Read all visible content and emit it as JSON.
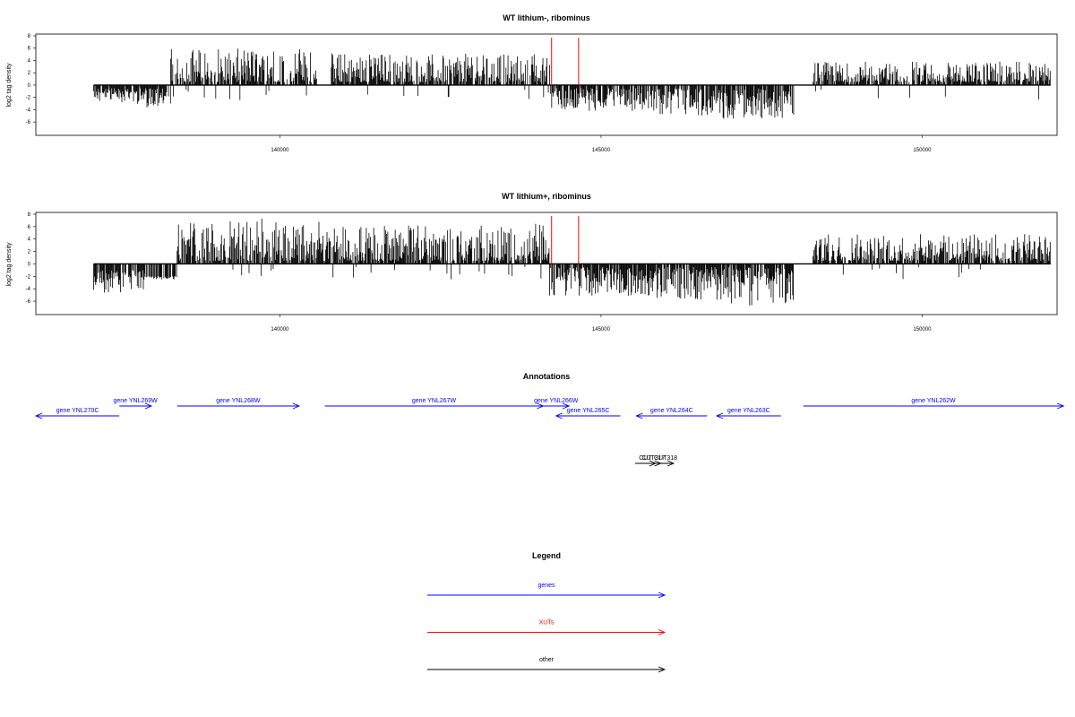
{
  "chart_data": [
    {
      "type": "bar",
      "title": "WT lithium-, ribominus",
      "ylabel": "log2 tag density",
      "xlim": [
        136200,
        152100
      ],
      "ylim": [
        -7,
        8
      ],
      "x_ticks": [
        "140000",
        "145000",
        "150000"
      ],
      "y_ticks": [
        "8",
        "6",
        "4",
        "2",
        "0",
        "-2",
        "-4",
        "-6"
      ],
      "marker_lines_x": [
        144230,
        144650
      ],
      "marker_line_color": "#ff0000",
      "bar_color": "#000000",
      "profile_segments": [
        {
          "x0": 137100,
          "x1": 137700,
          "min": -2.8,
          "max": -0.5
        },
        {
          "x0": 137700,
          "x1": 138300,
          "min": -3.8,
          "max": -0.5
        },
        {
          "x0": 138300,
          "x1": 140600,
          "min": 0.5,
          "max": 6.0
        },
        {
          "x0": 140800,
          "x1": 144200,
          "min": 0.5,
          "max": 5.2
        },
        {
          "x0": 144200,
          "x1": 145900,
          "min": -4.2,
          "max": -0.5
        },
        {
          "x0": 145900,
          "x1": 146900,
          "min": -5.0,
          "max": -0.5
        },
        {
          "x0": 146900,
          "x1": 148000,
          "min": -5.6,
          "max": -0.5
        },
        {
          "x0": 148300,
          "x1": 152000,
          "min": 0.5,
          "max": 3.8
        }
      ]
    },
    {
      "type": "bar",
      "title": "WT lithium+, ribominus",
      "ylabel": "log2 tag density",
      "xlim": [
        136200,
        152100
      ],
      "ylim": [
        -7,
        8
      ],
      "x_ticks": [
        "140000",
        "145000",
        "150000"
      ],
      "y_ticks": [
        "8",
        "6",
        "4",
        "2",
        "0",
        "-2",
        "-4",
        "-6"
      ],
      "marker_lines_x": [
        144230,
        144650
      ],
      "marker_line_color": "#ff0000",
      "bar_color": "#000000",
      "profile_segments": [
        {
          "x0": 137100,
          "x1": 137900,
          "min": -4.8,
          "max": 1.0
        },
        {
          "x0": 137900,
          "x1": 138400,
          "min": -2.5,
          "max": 2.0
        },
        {
          "x0": 138400,
          "x1": 141000,
          "min": 0.5,
          "max": 7.3
        },
        {
          "x0": 141000,
          "x1": 144200,
          "min": 0.5,
          "max": 6.5
        },
        {
          "x0": 144200,
          "x1": 145800,
          "min": -5.2,
          "max": -0.5
        },
        {
          "x0": 145800,
          "x1": 147000,
          "min": -6.0,
          "max": -0.5
        },
        {
          "x0": 147000,
          "x1": 148000,
          "min": -6.8,
          "max": -0.5
        },
        {
          "x0": 148300,
          "x1": 152000,
          "min": 0.5,
          "max": 4.8
        }
      ]
    }
  ],
  "annotations": {
    "title": "Annotations",
    "genes_color": "#0000ff",
    "features": [
      {
        "label": "gene YNL270C",
        "start": 136200,
        "end": 137500,
        "strand": "-",
        "row": 1,
        "color": "#0000ff"
      },
      {
        "label": "gene YNL269W",
        "start": 137500,
        "end": 138000,
        "strand": "+",
        "row": 0,
        "color": "#0000ff"
      },
      {
        "label": "gene YNL268W",
        "start": 138400,
        "end": 140300,
        "strand": "+",
        "row": 0,
        "color": "#0000ff"
      },
      {
        "label": "gene YNL267W",
        "start": 140700,
        "end": 144100,
        "strand": "+",
        "row": 0,
        "color": "#0000ff"
      },
      {
        "label": "gene YNL266W",
        "start": 144100,
        "end": 144500,
        "strand": "+",
        "row": 0,
        "color": "#0000ff"
      },
      {
        "label": "gene YNL265C",
        "start": 144300,
        "end": 145300,
        "strand": "-",
        "row": 1,
        "color": "#0000ff"
      },
      {
        "label": "gene YNL264C",
        "start": 145550,
        "end": 146650,
        "strand": "-",
        "row": 1,
        "color": "#0000ff"
      },
      {
        "label": "gene YNL263C",
        "start": 146800,
        "end": 147800,
        "strand": "-",
        "row": 1,
        "color": "#0000ff"
      },
      {
        "label": "gene YNL262W",
        "start": 148150,
        "end": 152200,
        "strand": "+",
        "row": 0,
        "color": "#0000ff"
      },
      {
        "label": "CUT",
        "start": 145530,
        "end": 145850,
        "strand": "+",
        "row": 2,
        "color": "#000000"
      },
      {
        "label": "CUT317",
        "start": 145700,
        "end": 145930,
        "strand": "+",
        "row": 2,
        "color": "#000000"
      },
      {
        "label": "CUT318",
        "start": 145880,
        "end": 146130,
        "strand": "+",
        "row": 2,
        "color": "#000000"
      }
    ]
  },
  "legend": {
    "title": "Legend",
    "items": [
      {
        "label": "genes",
        "color": "#0000ff"
      },
      {
        "label": "XUTs",
        "color": "#ff0000"
      },
      {
        "label": "other",
        "color": "#000000"
      }
    ]
  }
}
